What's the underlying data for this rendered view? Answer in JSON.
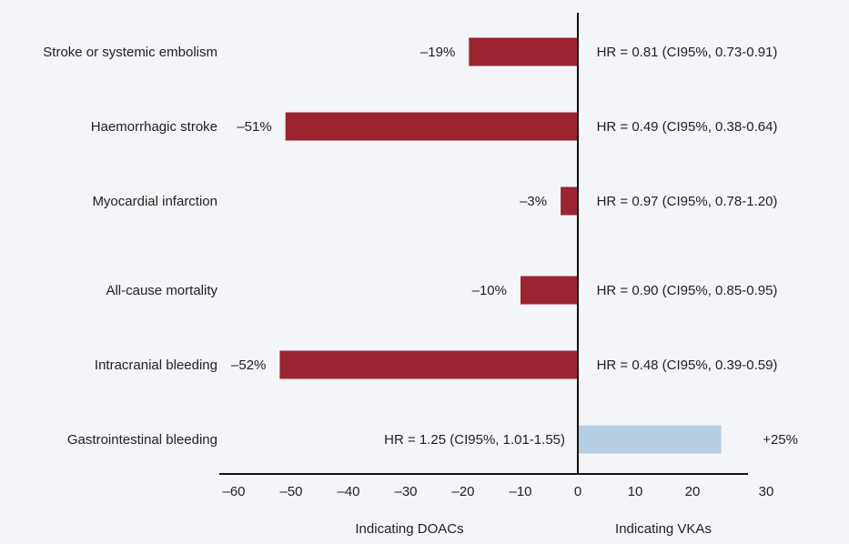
{
  "chart_data": {
    "type": "bar",
    "orientation": "horizontal",
    "categories": [
      "Stroke or systemic embolism",
      "Haemorrhagic stroke",
      "Myocardial infarction",
      "All-cause mortality",
      "Intracranial bleeding",
      "Gastrointestinal bleeding"
    ],
    "values": [
      -19,
      -51,
      -3,
      -10,
      -52,
      25
    ],
    "value_labels": [
      "–19%",
      "–51%",
      "–3%",
      "–10%",
      "–52%",
      "+25%"
    ],
    "hr_labels": [
      "HR = 0.81 (CI95%, 0.73-0.91)",
      "HR = 0.49 (CI95%, 0.38-0.64)",
      "HR = 0.97 (CI95%, 0.78-1.20)",
      "HR = 0.90 (CI95%, 0.85-0.95)",
      "HR = 0.48 (CI95%, 0.39-0.59)",
      "HR = 1.25 (CI95%, 1.01-1.55)"
    ],
    "xlim": [
      -62,
      30
    ],
    "xticks": [
      -60,
      -50,
      -40,
      -30,
      -20,
      -10,
      0,
      10,
      20,
      30
    ],
    "xtick_labels": [
      "–60",
      "–50",
      "–40",
      "–30",
      "–20",
      "–10",
      "0",
      "10",
      "20",
      "30"
    ],
    "axis_captions": {
      "negative": "Indicating DOACs",
      "positive": "Indicating VKAs"
    },
    "colors": {
      "negative": "#9b2431",
      "positive": "#b6cde2",
      "axis": "#111111"
    },
    "grid": false,
    "legend": "none"
  }
}
